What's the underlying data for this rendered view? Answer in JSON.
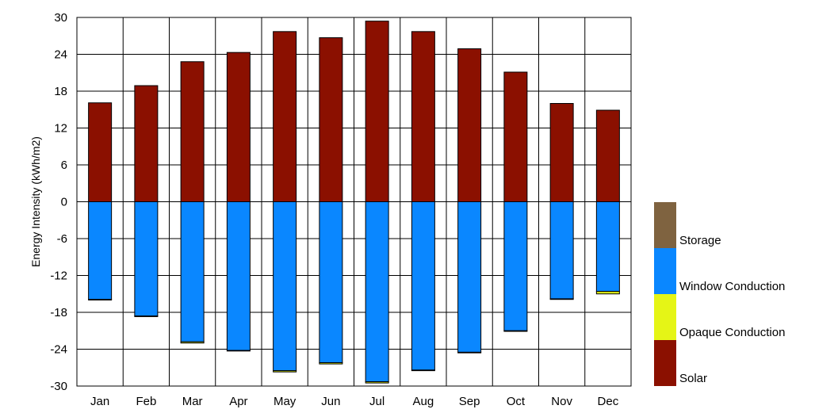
{
  "chart_data": {
    "type": "bar",
    "stacked": true,
    "title": "",
    "xlabel": "",
    "ylabel": "Energy Intensity (kWh/m2)",
    "ylim": [
      -30,
      30
    ],
    "yticks": [
      "30",
      "24",
      "18",
      "12",
      "6",
      "0",
      "-6",
      "-12",
      "-18",
      "-24",
      "-30"
    ],
    "grid": true,
    "legend_position": "right",
    "categories": [
      "Jan",
      "Feb",
      "Mar",
      "Apr",
      "May",
      "Jun",
      "Jul",
      "Aug",
      "Sep",
      "Oct",
      "Nov",
      "Dec"
    ],
    "series": [
      {
        "name": "Storage",
        "color": "#7f6340",
        "values": [
          0,
          0,
          0,
          0,
          0,
          0,
          0,
          0,
          0,
          0,
          0,
          0
        ]
      },
      {
        "name": "Window Conduction",
        "color": "#0a87ff",
        "values": [
          -15.9,
          -18.6,
          -22.8,
          -24.2,
          -27.5,
          -26.2,
          -29.3,
          -27.4,
          -24.5,
          -21.0,
          -15.8,
          -14.6
        ]
      },
      {
        "name": "Opaque Conduction",
        "color": "#e5f516",
        "values": [
          -0.1,
          -0.1,
          -0.2,
          -0.1,
          -0.2,
          -0.2,
          -0.2,
          -0.1,
          -0.1,
          -0.1,
          -0.1,
          -0.4
        ]
      },
      {
        "name": "Solar",
        "color": "#8b1000",
        "values": [
          16.1,
          18.9,
          22.8,
          24.3,
          27.7,
          26.7,
          29.4,
          27.7,
          24.9,
          21.1,
          16.0,
          14.9
        ]
      }
    ]
  }
}
